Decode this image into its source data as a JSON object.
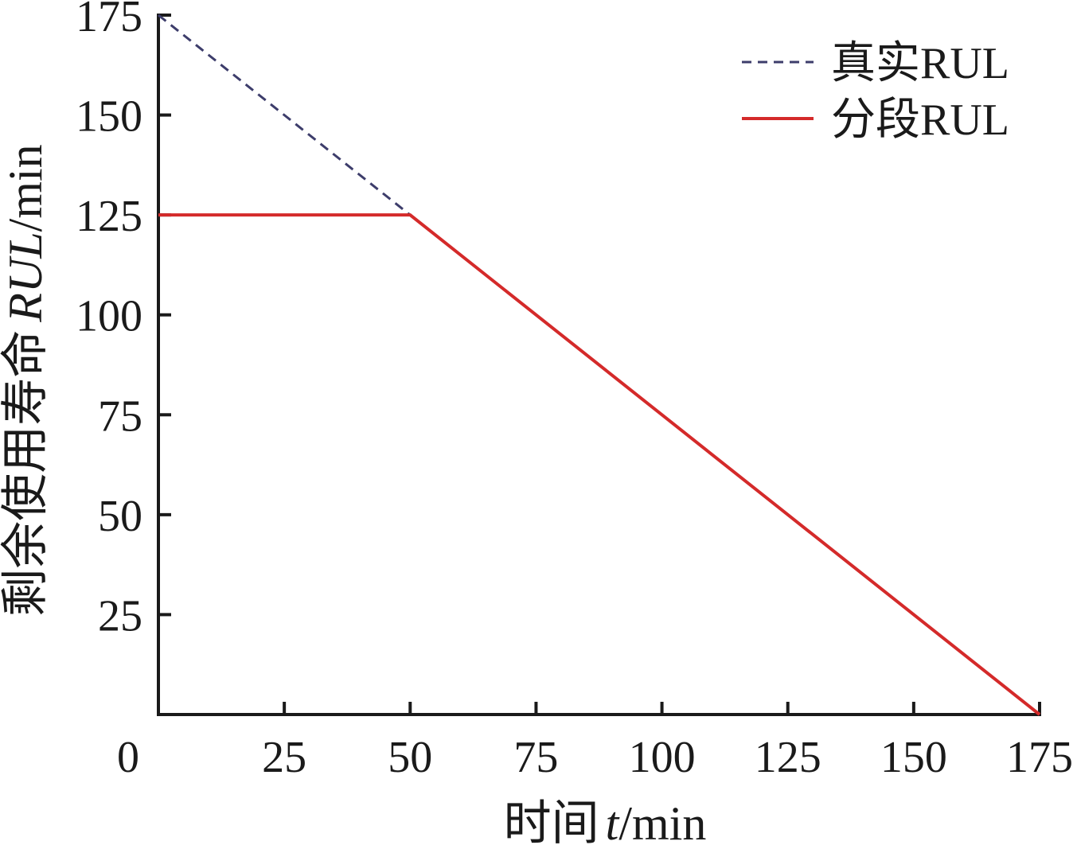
{
  "chart_data": {
    "type": "line",
    "x_ticks": [
      0,
      25,
      50,
      75,
      100,
      125,
      150,
      175
    ],
    "y_ticks": [
      25,
      50,
      75,
      100,
      125,
      150,
      175
    ],
    "xlim": [
      0,
      175
    ],
    "ylim": [
      0,
      175
    ],
    "xlabel": {
      "prefix": "时间",
      "var": "t",
      "unit": "/min"
    },
    "ylabel": {
      "prefix": "剩余使用寿命",
      "var": "RUL",
      "unit": "/min"
    },
    "grid": false,
    "legend_position": "top-right",
    "series": [
      {
        "name": "真实RUL",
        "style": "dashed",
        "color": "#3d3d6b",
        "x": [
          0,
          175
        ],
        "y": [
          175,
          0
        ]
      },
      {
        "name": "分段RUL",
        "style": "solid",
        "color": "#d42a2a",
        "x": [
          0,
          50,
          175
        ],
        "y": [
          125,
          125,
          0
        ]
      }
    ]
  }
}
